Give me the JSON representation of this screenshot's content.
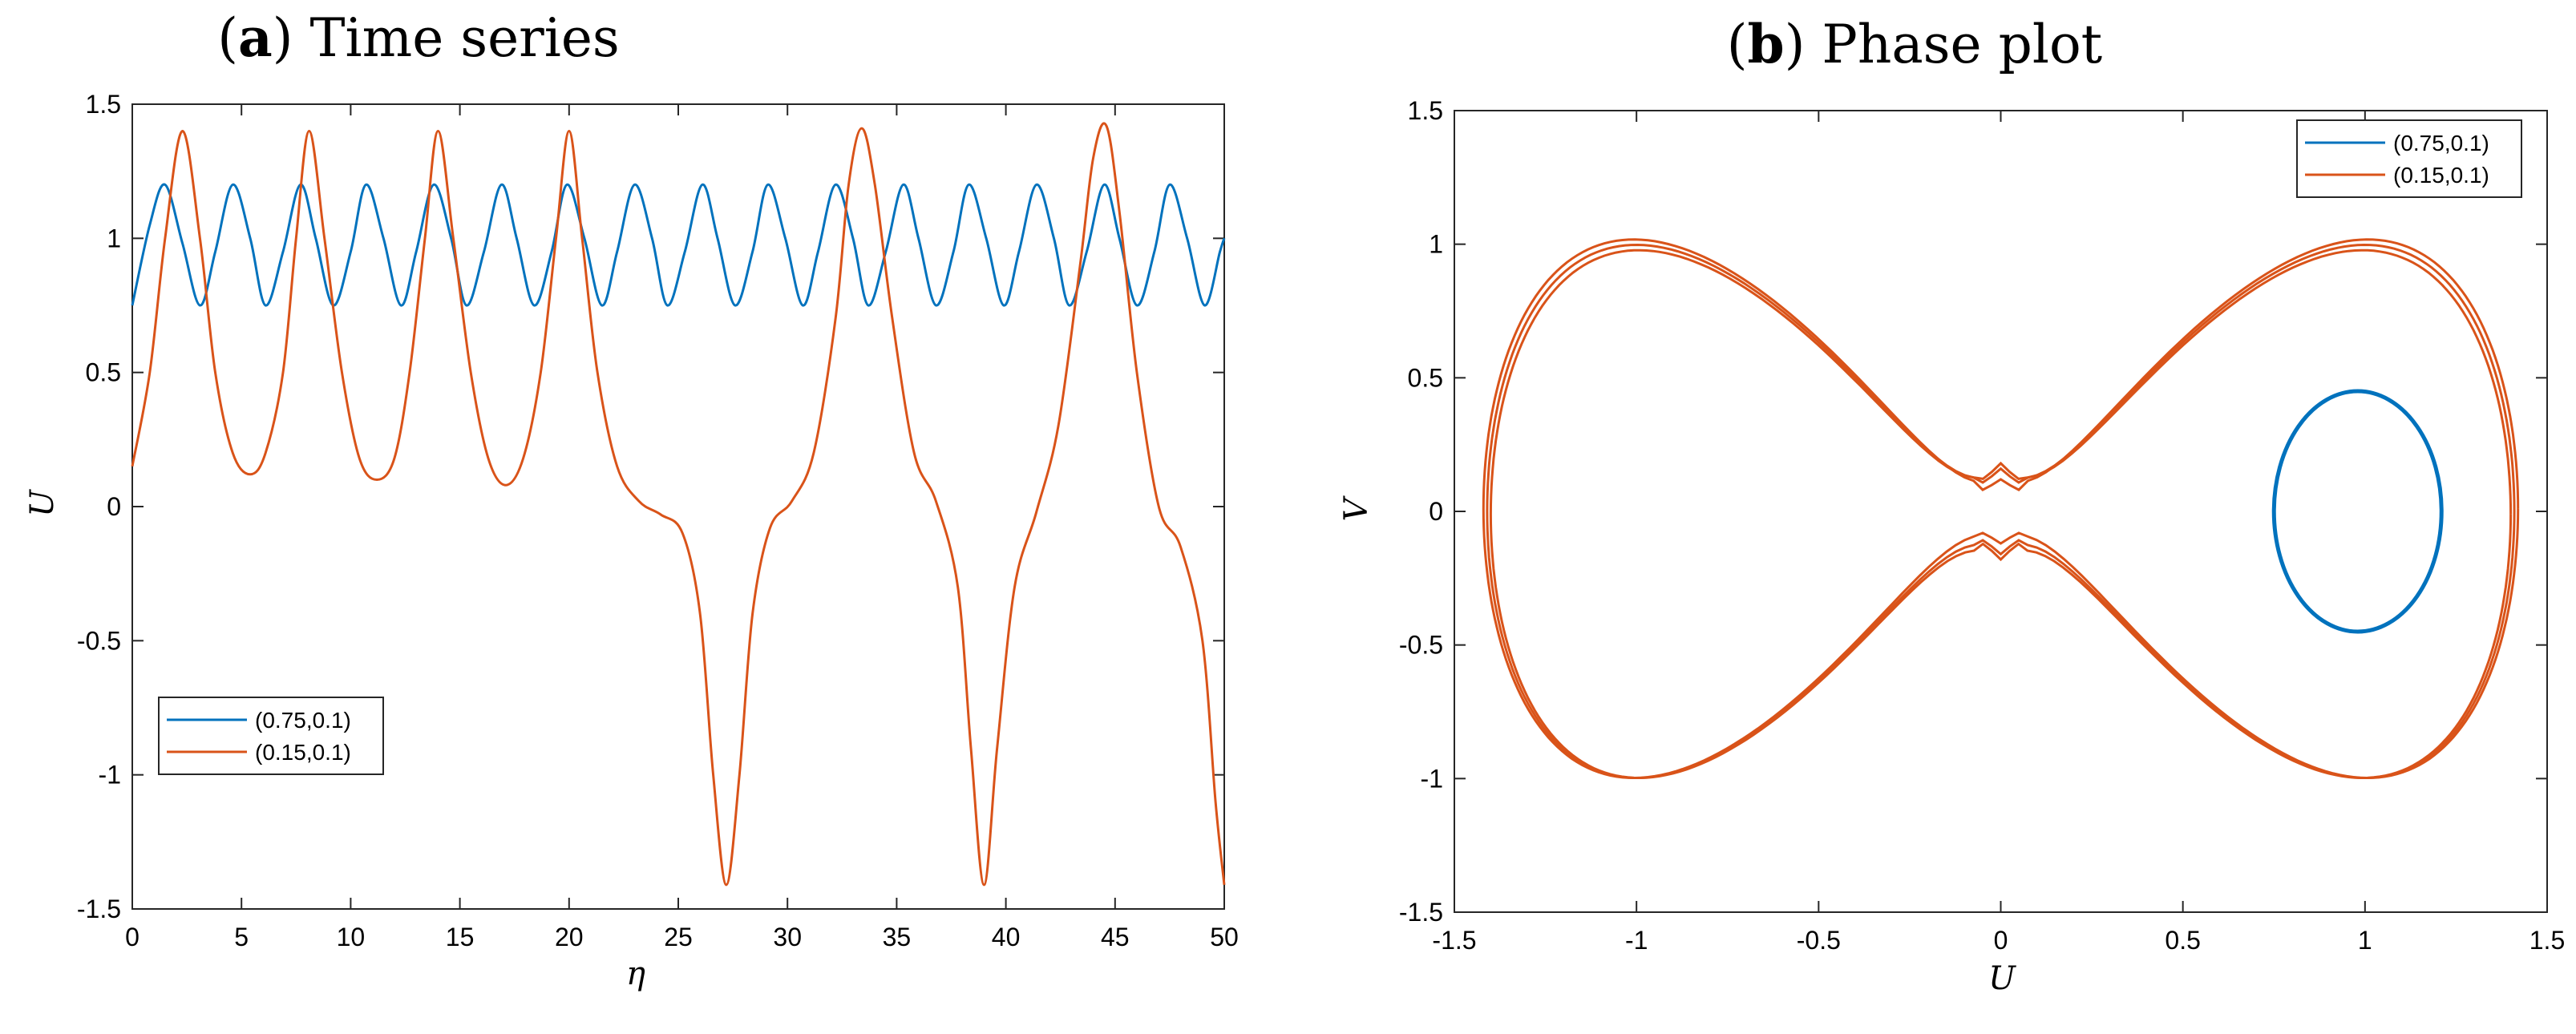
{
  "colors": {
    "series_blue": "#0072BD",
    "series_orange": "#D95319",
    "axes": "#262626",
    "background": "#ffffff"
  },
  "chart_data": [
    {
      "type": "line",
      "title_label": "a",
      "title_text": "Time series",
      "xlabel": "η",
      "ylabel": "U",
      "xlim": [
        0,
        50
      ],
      "ylim": [
        -1.5,
        1.5
      ],
      "xticks": [
        "0",
        "5",
        "10",
        "15",
        "20",
        "25",
        "30",
        "35",
        "40",
        "45",
        "50"
      ],
      "yticks": [
        "-1.5",
        "-1",
        "-0.5",
        "0",
        "0.5",
        "1",
        "1.5"
      ],
      "grid": false,
      "legend_position": "bottom-left",
      "series": [
        {
          "name": "(0.75,0.1)",
          "color": "#0072BD",
          "x": [
            0,
            0.8,
            1.5,
            2.3,
            3.1,
            3.8,
            4.6,
            5.4,
            6.1,
            6.9,
            7.7,
            8.4,
            9.2,
            10.0,
            10.7,
            11.5,
            12.3,
            13.0,
            13.8,
            14.6,
            15.3,
            16.1,
            16.9,
            17.6,
            18.4,
            19.2,
            19.9,
            20.7,
            21.5,
            22.2,
            23.0,
            23.8,
            24.5,
            25.3,
            26.1,
            26.8,
            27.6,
            28.4,
            29.1,
            29.9,
            30.7,
            31.4,
            32.2,
            33.0,
            33.7,
            34.5,
            35.3,
            36.0,
            36.8,
            37.6,
            38.3,
            39.1,
            39.9,
            40.6,
            41.4,
            42.2,
            42.9,
            43.7,
            44.5,
            45.2,
            46.0,
            46.8,
            47.5,
            48.3,
            49.1,
            49.8,
            50.0
          ],
          "y": [
            0.75,
            1.05,
            1.2,
            0.98,
            0.75,
            0.95,
            1.2,
            1.0,
            0.75,
            0.95,
            1.2,
            1.0,
            0.75,
            0.95,
            1.2,
            1.0,
            0.75,
            0.95,
            1.2,
            1.0,
            0.75,
            0.95,
            1.2,
            1.0,
            0.75,
            0.95,
            1.2,
            1.0,
            0.75,
            0.95,
            1.2,
            1.0,
            0.75,
            0.95,
            1.2,
            1.0,
            0.75,
            0.95,
            1.2,
            1.0,
            0.75,
            0.95,
            1.2,
            1.0,
            0.75,
            0.95,
            1.2,
            1.0,
            0.75,
            0.95,
            1.2,
            1.0,
            0.75,
            0.95,
            1.2,
            1.0,
            0.75,
            0.95,
            1.2,
            1.0,
            0.75,
            0.95,
            1.2,
            1.0,
            0.75,
            0.95,
            1.0
          ]
        },
        {
          "name": "(0.15,0.1)",
          "color": "#D95319",
          "x": [
            0,
            0.8,
            1.5,
            2.3,
            3.1,
            3.8,
            4.6,
            5.4,
            6.1,
            6.9,
            7.5,
            8.1,
            8.8,
            9.6,
            10.4,
            11.2,
            12.0,
            12.7,
            13.4,
            14.0,
            14.7,
            15.5,
            16.3,
            17.1,
            17.9,
            18.7,
            19.4,
            20.0,
            20.6,
            21.3,
            22.2,
            23.2,
            24.2,
            25.2,
            26.0,
            26.6,
            27.2,
            27.8,
            28.4,
            29.2,
            30.2,
            31.2,
            32.2,
            32.8,
            33.4,
            34.0,
            34.8,
            35.8,
            36.8,
            37.8,
            38.4,
            39.0,
            39.6,
            40.4,
            41.4,
            42.4,
            43.4,
            44.0,
            44.6,
            45.2,
            46.0,
            47.0,
            48.0,
            49.0,
            49.6,
            50.0
          ],
          "y": [
            0.15,
            0.5,
            1.0,
            1.4,
            1.0,
            0.5,
            0.2,
            0.12,
            0.2,
            0.5,
            1.0,
            1.4,
            1.0,
            0.5,
            0.18,
            0.1,
            0.18,
            0.5,
            1.0,
            1.4,
            1.0,
            0.5,
            0.18,
            0.08,
            0.18,
            0.5,
            1.0,
            1.4,
            1.0,
            0.5,
            0.15,
            0.02,
            -0.03,
            -0.1,
            -0.4,
            -1.0,
            -1.41,
            -1.0,
            -0.4,
            -0.08,
            0.02,
            0.2,
            0.7,
            1.2,
            1.41,
            1.2,
            0.7,
            0.2,
            0.02,
            -0.3,
            -0.9,
            -1.41,
            -0.9,
            -0.3,
            -0.02,
            0.3,
            0.9,
            1.3,
            1.42,
            1.1,
            0.5,
            0.0,
            -0.15,
            -0.5,
            -1.1,
            -1.41
          ]
        }
      ]
    },
    {
      "type": "line",
      "title_label": "b",
      "title_text": "Phase plot",
      "xlabel": "U",
      "ylabel": "V",
      "xlim": [
        -1.5,
        1.5
      ],
      "ylim": [
        -1.5,
        1.5
      ],
      "xticks": [
        "-1.5",
        "-1",
        "-0.5",
        "0",
        "0.5",
        "1",
        "1.5"
      ],
      "yticks": [
        "-1.5",
        "-1",
        "-0.5",
        "0",
        "0.5",
        "1",
        "1.5"
      ],
      "grid": false,
      "legend_position": "top-right",
      "series": [
        {
          "name": "(0.75,0.1)",
          "color": "#0072BD",
          "closed_orbit": {
            "center_u": 0.98,
            "center_v": 0.0,
            "radius_u": 0.23,
            "radius_v": 0.45
          }
        },
        {
          "name": "(0.15,0.1)",
          "color": "#D95319",
          "orbits": [
            {
              "amp_u": 1.41,
              "amp_v": 1.0,
              "waist": 0.16,
              "offset": 0.0
            },
            {
              "amp_u": 1.42,
              "amp_v": 1.01,
              "waist": 0.12,
              "offset": 0.01
            },
            {
              "amp_u": 1.4,
              "amp_v": 0.99,
              "waist": 0.18,
              "offset": -0.01
            }
          ],
          "start_point": [
            0.15,
            0.1
          ]
        }
      ]
    }
  ]
}
